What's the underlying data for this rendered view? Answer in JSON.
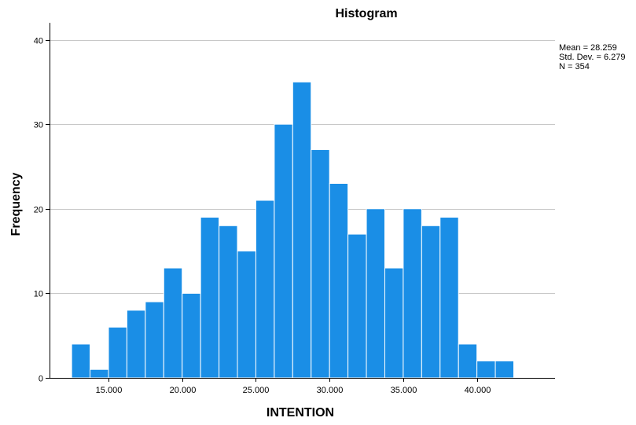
{
  "chart_data": {
    "type": "bar",
    "title": "Histogram",
    "xlabel": "INTENTION",
    "ylabel": "Frequency",
    "ylim": [
      0,
      42
    ],
    "xlim": [
      11.0,
      45.3
    ],
    "yticks": [
      0,
      10,
      20,
      30,
      40
    ],
    "xticks": [
      15,
      20,
      25,
      30,
      35,
      40
    ],
    "xtick_labels": [
      "15.000",
      "20.000",
      "25.000",
      "30.000",
      "35.000",
      "40.000"
    ],
    "grid": "horizontal",
    "bin_width": 1.25,
    "bins": [
      {
        "start": 12.5,
        "value": 4
      },
      {
        "start": 13.75,
        "value": 1
      },
      {
        "start": 15.0,
        "value": 6
      },
      {
        "start": 16.25,
        "value": 8
      },
      {
        "start": 17.5,
        "value": 9
      },
      {
        "start": 18.75,
        "value": 13
      },
      {
        "start": 20.0,
        "value": 10
      },
      {
        "start": 21.25,
        "value": 19
      },
      {
        "start": 22.5,
        "value": 18
      },
      {
        "start": 23.75,
        "value": 15
      },
      {
        "start": 25.0,
        "value": 21
      },
      {
        "start": 26.25,
        "value": 30
      },
      {
        "start": 27.5,
        "value": 35
      },
      {
        "start": 28.75,
        "value": 27
      },
      {
        "start": 30.0,
        "value": 23
      },
      {
        "start": 31.25,
        "value": 17
      },
      {
        "start": 32.5,
        "value": 20
      },
      {
        "start": 33.75,
        "value": 13
      },
      {
        "start": 35.0,
        "value": 20
      },
      {
        "start": 36.25,
        "value": 18
      },
      {
        "start": 37.5,
        "value": 19
      },
      {
        "start": 38.75,
        "value": 4
      },
      {
        "start": 40.0,
        "value": 2
      },
      {
        "start": 41.25,
        "value": 2
      }
    ],
    "stats": [
      "Mean = 28.259",
      "Std. Dev. = 6.279",
      "N = 354"
    ],
    "colors": {
      "bar": "#1a8ee6",
      "bar_edge": "#ffffff",
      "grid": "#c8c8c8",
      "axis": "#000000"
    }
  }
}
